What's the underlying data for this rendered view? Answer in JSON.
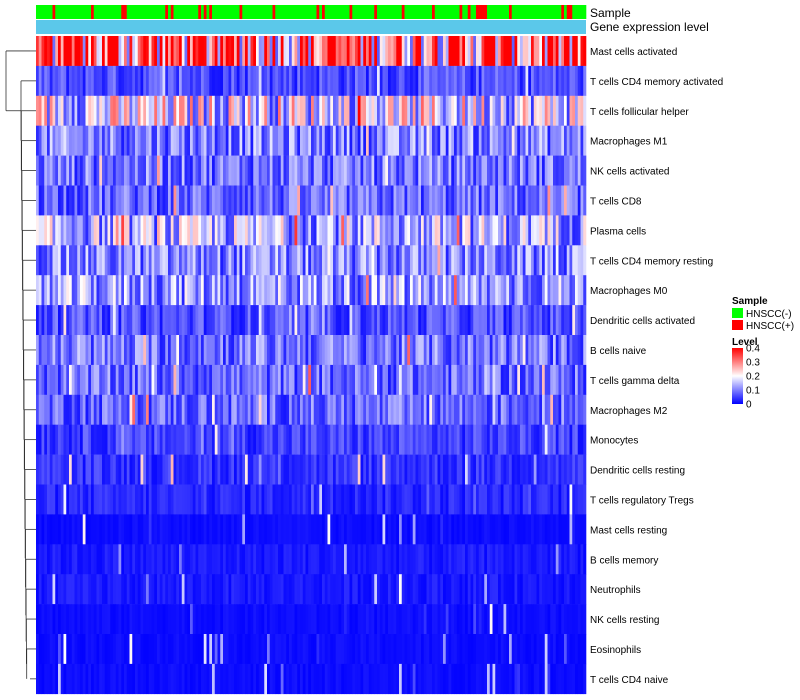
{
  "chart_data": {
    "type": "heatmap",
    "title": "",
    "annotation_tracks": [
      "Sample",
      "Gene expression level"
    ],
    "rows": [
      "Mast cells activated",
      "T cells CD4 memory activated",
      "T cells follicular helper",
      "Macrophages M1",
      "NK cells activated",
      "T cells CD8",
      "Plasma cells",
      "T cells CD4 memory resting",
      "Macrophages M0",
      "Dendritic cells activated",
      "B cells naive",
      "T cells gamma delta",
      "Macrophages M2",
      "Monocytes",
      "Dendritic cells resting",
      "T cells regulatory  Tregs",
      "Mast cells resting",
      "B cells memory",
      "Neutrophils",
      "NK cells resting",
      "Eosinophils",
      "T cells CD4 naive"
    ],
    "row_mean_level": [
      0.32,
      0.06,
      0.18,
      0.1,
      0.09,
      0.08,
      0.14,
      0.1,
      0.12,
      0.06,
      0.09,
      0.08,
      0.08,
      0.05,
      0.04,
      0.03,
      0.01,
      0.02,
      0.02,
      0.01,
      0.01,
      0.01
    ],
    "n_samples": 200,
    "sample_legend": {
      "title": "Sample",
      "entries": [
        {
          "label": "HNSCC(-)",
          "color": "#00ff00"
        },
        {
          "label": "HNSCC(+)",
          "color": "#ff0000"
        }
      ]
    },
    "gene_expression_level_color": "#5bc8ea",
    "level_legend": {
      "title": "Level",
      "ticks": [
        "0.4",
        "0.3",
        "0.2",
        "0.1",
        "0"
      ],
      "tick_values": [
        0.4,
        0.3,
        0.2,
        0.1,
        0
      ],
      "range": [
        0,
        0.4
      ],
      "colors": [
        "#0000ff",
        "#ffffff",
        "#ff0000"
      ]
    }
  }
}
